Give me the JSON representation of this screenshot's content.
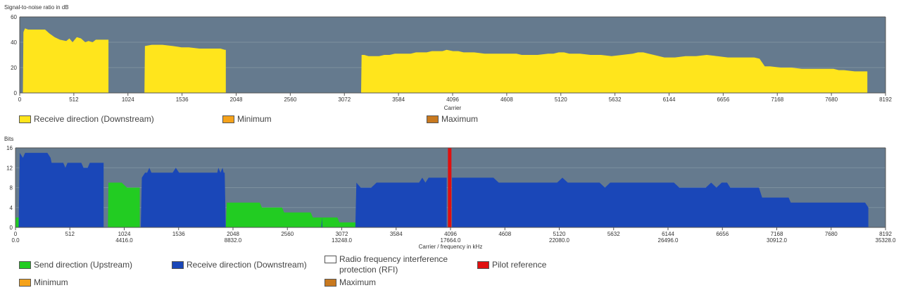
{
  "colors": {
    "plot_bg": "#657a8e",
    "snr": "#ffe51c",
    "upstream": "#22cc22",
    "downstream": "#1a47b8",
    "pilot": "#e01010",
    "rfi": "#ffffff",
    "minimum": "#f5a21a",
    "maximum": "#c8791f"
  },
  "chart_data": [
    {
      "type": "area",
      "title": "Signal-to-noise ratio in dB",
      "xlabel": "Carrier",
      "xlim": [
        0,
        8192
      ],
      "ylim": [
        0,
        60
      ],
      "x_ticks": [
        "0",
        "512",
        "1024",
        "1536",
        "2048",
        "2560",
        "3072",
        "3584",
        "4096",
        "4608",
        "5120",
        "5632",
        "6144",
        "6656",
        "7168",
        "7680",
        "8192"
      ],
      "y_ticks": [
        "0",
        "20",
        "40",
        "60"
      ],
      "grid": true,
      "series": [
        {
          "name": "Receive direction (Downstream)",
          "segments": [
            [
              [
                30,
                0
              ],
              [
                35,
                48
              ],
              [
                50,
                51
              ],
              [
                80,
                50
              ],
              [
                150,
                50
              ],
              [
                200,
                50
              ],
              [
                240,
                50
              ],
              [
                280,
                47
              ],
              [
                330,
                44
              ],
              [
                380,
                42
              ],
              [
                440,
                41
              ],
              [
                470,
                43
              ],
              [
                500,
                40
              ],
              [
                540,
                44
              ],
              [
                580,
                43
              ],
              [
                620,
                40
              ],
              [
                650,
                41
              ],
              [
                690,
                40
              ],
              [
                720,
                42
              ],
              [
                780,
                42
              ],
              [
                830,
                42
              ],
              [
                840,
                42
              ],
              [
                840,
                0
              ]
            ],
            [
              [
                1180,
                0
              ],
              [
                1185,
                37
              ],
              [
                1250,
                38
              ],
              [
                1350,
                38
              ],
              [
                1450,
                37
              ],
              [
                1530,
                36
              ],
              [
                1600,
                36
              ],
              [
                1700,
                35
              ],
              [
                1800,
                35
              ],
              [
                1900,
                35
              ],
              [
                1940,
                34
              ],
              [
                1950,
                34
              ],
              [
                1950,
                0
              ]
            ],
            [
              [
                3230,
                0
              ],
              [
                3235,
                30
              ],
              [
                3260,
                30
              ],
              [
                3300,
                29
              ],
              [
                3350,
                29
              ],
              [
                3400,
                29
              ],
              [
                3450,
                30
              ],
              [
                3500,
                30
              ],
              [
                3550,
                31
              ],
              [
                3600,
                31
              ],
              [
                3650,
                31
              ],
              [
                3700,
                31
              ],
              [
                3750,
                32
              ],
              [
                3800,
                32
              ],
              [
                3850,
                32
              ],
              [
                3900,
                33
              ],
              [
                3950,
                33
              ],
              [
                4000,
                33
              ],
              [
                4040,
                34
              ],
              [
                4100,
                33
              ],
              [
                4150,
                33
              ],
              [
                4200,
                32
              ],
              [
                4300,
                32
              ],
              [
                4400,
                31
              ],
              [
                4500,
                31
              ],
              [
                4600,
                31
              ],
              [
                4700,
                31
              ],
              [
                4750,
                30
              ],
              [
                4800,
                30
              ],
              [
                4900,
                30
              ],
              [
                5000,
                31
              ],
              [
                5050,
                31
              ],
              [
                5100,
                32
              ],
              [
                5150,
                32
              ],
              [
                5200,
                31
              ],
              [
                5300,
                31
              ],
              [
                5400,
                30
              ],
              [
                5500,
                30
              ],
              [
                5600,
                29
              ],
              [
                5700,
                30
              ],
              [
                5800,
                31
              ],
              [
                5850,
                32
              ],
              [
                5900,
                32
              ],
              [
                5950,
                31
              ],
              [
                6000,
                30
              ],
              [
                6100,
                28
              ],
              [
                6200,
                28
              ],
              [
                6300,
                29
              ],
              [
                6400,
                29
              ],
              [
                6500,
                30
              ],
              [
                6600,
                29
              ],
              [
                6700,
                28
              ],
              [
                6800,
                28
              ],
              [
                6900,
                28
              ],
              [
                6950,
                28
              ],
              [
                7000,
                27
              ],
              [
                7050,
                21
              ],
              [
                7100,
                21
              ],
              [
                7200,
                20
              ],
              [
                7300,
                20
              ],
              [
                7400,
                19
              ],
              [
                7500,
                19
              ],
              [
                7600,
                19
              ],
              [
                7700,
                19
              ],
              [
                7750,
                18
              ],
              [
                7800,
                18
              ],
              [
                7900,
                17
              ],
              [
                7950,
                17
              ],
              [
                8020,
                17
              ],
              [
                8020,
                0
              ]
            ]
          ]
        },
        {
          "name": "Minimum",
          "segments": []
        },
        {
          "name": "Maximum",
          "segments": []
        }
      ],
      "legend": [
        {
          "label": "Receive direction (Downstream)",
          "color": "#ffe51c"
        },
        {
          "label": "Minimum",
          "color": "#f5a21a"
        },
        {
          "label": "Maximum",
          "color": "#c8791f"
        }
      ]
    },
    {
      "type": "area",
      "title": "Bits",
      "xlabel": "Carrier / frequency in kHz",
      "xlim": [
        0,
        8192
      ],
      "ylim": [
        0,
        16
      ],
      "x_ticks": [
        "0",
        "512",
        "1024",
        "1536",
        "2048",
        "2560",
        "3072",
        "3584",
        "4096",
        "4608",
        "5120",
        "5632",
        "6144",
        "6656",
        "7168",
        "7680",
        "8192"
      ],
      "x_ticks_secondary": [
        {
          "carrier": 0,
          "label": "0.0"
        },
        {
          "carrier": 1024,
          "label": "4416.0"
        },
        {
          "carrier": 2048,
          "label": "8832.0"
        },
        {
          "carrier": 3072,
          "label": "13248.0"
        },
        {
          "carrier": 4096,
          "label": "17664.0"
        },
        {
          "carrier": 5120,
          "label": "22080.0"
        },
        {
          "carrier": 6144,
          "label": "26496.0"
        },
        {
          "carrier": 7168,
          "label": "30912.0"
        },
        {
          "carrier": 8192,
          "label": "35328.0"
        }
      ],
      "y_ticks": [
        "0",
        "4",
        "8",
        "12",
        "16"
      ],
      "grid": true,
      "series": [
        {
          "name": "Send direction (Upstream)",
          "segments": [
            [
              [
                0,
                0
              ],
              [
                0,
                2
              ],
              [
                30,
                2
              ],
              [
                30,
                0
              ]
            ],
            [
              [
                870,
                0
              ],
              [
                875,
                9
              ],
              [
                1000,
                9
              ],
              [
                1050,
                8
              ],
              [
                1170,
                8
              ],
              [
                1170,
                0
              ]
            ],
            [
              [
                1980,
                0
              ],
              [
                1990,
                5
              ],
              [
                2300,
                5
              ],
              [
                2320,
                4
              ],
              [
                2510,
                4
              ],
              [
                2530,
                3
              ],
              [
                2780,
                3
              ],
              [
                2800,
                2
              ],
              [
                3030,
                2
              ],
              [
                3050,
                1
              ],
              [
                3230,
                1
              ],
              [
                3230,
                0
              ]
            ]
          ]
        },
        {
          "name": "Receive direction (Downstream)",
          "segments": [
            [
              [
                30,
                0
              ],
              [
                40,
                15
              ],
              [
                70,
                14
              ],
              [
                90,
                15
              ],
              [
                300,
                15
              ],
              [
                330,
                14
              ],
              [
                340,
                13
              ],
              [
                450,
                13
              ],
              [
                470,
                12
              ],
              [
                490,
                13
              ],
              [
                620,
                13
              ],
              [
                640,
                12
              ],
              [
                680,
                12
              ],
              [
                700,
                13
              ],
              [
                830,
                13
              ],
              [
                830,
                0
              ]
            ],
            [
              [
                1180,
                0
              ],
              [
                1190,
                10
              ],
              [
                1220,
                11
              ],
              [
                1240,
                11
              ],
              [
                1260,
                12
              ],
              [
                1280,
                11
              ],
              [
                1480,
                11
              ],
              [
                1510,
                12
              ],
              [
                1540,
                11
              ],
              [
                1900,
                11
              ],
              [
                1910,
                12
              ],
              [
                1930,
                11
              ],
              [
                1950,
                12
              ],
              [
                1960,
                11
              ],
              [
                1970,
                11
              ],
              [
                1980,
                0
              ]
            ],
            [
              [
                2880,
                0
              ],
              [
                2885,
                2
              ],
              [
                2890,
                0
              ]
            ],
            [
              [
                3200,
                0
              ],
              [
                3210,
                9
              ],
              [
                3250,
                8
              ],
              [
                3350,
                8
              ],
              [
                3400,
                9
              ],
              [
                3800,
                9
              ],
              [
                3830,
                10
              ],
              [
                3860,
                9
              ],
              [
                3890,
                10
              ],
              [
                4060,
                10
              ],
              [
                4060,
                0
              ]
            ],
            [
              [
                4110,
                0
              ],
              [
                4110,
                10
              ],
              [
                4500,
                10
              ],
              [
                4550,
                9
              ],
              [
                4800,
                9
              ],
              [
                5100,
                9
              ],
              [
                5150,
                10
              ],
              [
                5200,
                9
              ],
              [
                5500,
                9
              ],
              [
                5550,
                8
              ],
              [
                5600,
                9
              ],
              [
                5800,
                9
              ],
              [
                6200,
                9
              ],
              [
                6250,
                8
              ],
              [
                6500,
                8
              ],
              [
                6550,
                9
              ],
              [
                6600,
                8
              ],
              [
                6650,
                9
              ],
              [
                6700,
                9
              ],
              [
                6730,
                8
              ],
              [
                7000,
                8
              ],
              [
                7030,
                6
              ],
              [
                7150,
                6
              ],
              [
                7280,
                6
              ],
              [
                7300,
                5
              ],
              [
                7500,
                5
              ],
              [
                7800,
                5
              ],
              [
                8000,
                5
              ],
              [
                8030,
                4
              ],
              [
                8030,
                0
              ]
            ]
          ]
        },
        {
          "name": "Radio frequency interference protection (RFI)",
          "segments": []
        },
        {
          "name": "Pilot reference",
          "carrier": 4085
        },
        {
          "name": "Minimum",
          "segments": []
        },
        {
          "name": "Maximum",
          "segments": []
        }
      ],
      "legend": [
        {
          "label": "Send direction (Upstream)",
          "color": "#22cc22"
        },
        {
          "label": "Receive direction (Downstream)",
          "color": "#1a47b8"
        },
        {
          "label": "Radio frequency interference protection (RFI)",
          "color": "#ffffff"
        },
        {
          "label": "Pilot reference",
          "color": "#e01010"
        },
        {
          "label": "Minimum",
          "color": "#f5a21a"
        },
        {
          "label": "Maximum",
          "color": "#c8791f"
        }
      ]
    }
  ]
}
